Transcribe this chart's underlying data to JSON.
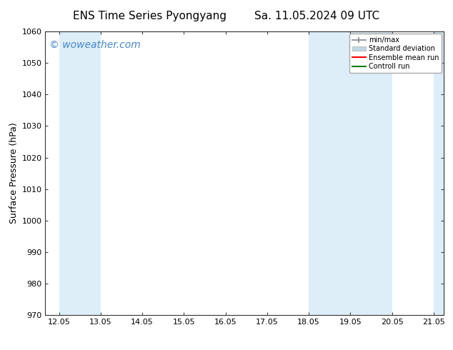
{
  "title_left": "ENS Time Series Pyongyang",
  "title_right": "Sa. 11.05.2024 09 UTC",
  "ylabel": "Surface Pressure (hPa)",
  "xlabel": "",
  "ylim": [
    970,
    1060
  ],
  "yticks": [
    970,
    980,
    990,
    1000,
    1010,
    1020,
    1030,
    1040,
    1050,
    1060
  ],
  "xtick_values": [
    12.05,
    13.05,
    14.05,
    15.05,
    16.05,
    17.05,
    18.05,
    19.05,
    20.05,
    21.05
  ],
  "xtick_labels": [
    "12.05",
    "13.05",
    "14.05",
    "15.05",
    "16.05",
    "17.05",
    "18.05",
    "19.05",
    "20.05",
    "21.05"
  ],
  "xlim": [
    11.72,
    21.3
  ],
  "shaded_bands": [
    {
      "x_start": 12.05,
      "x_end": 13.05,
      "color": "#ddeef8"
    },
    {
      "x_start": 18.05,
      "x_end": 19.05,
      "color": "#ddeef8"
    },
    {
      "x_start": 19.05,
      "x_end": 20.05,
      "color": "#ddeef8"
    },
    {
      "x_start": 21.05,
      "x_end": 21.3,
      "color": "#ddeef8"
    }
  ],
  "watermark": "© woweather.com",
  "watermark_color": "#4488cc",
  "watermark_fontsize": 10,
  "legend_labels": [
    "min/max",
    "Standard deviation",
    "Ensemble mean run",
    "Controll run"
  ],
  "legend_colors": [
    "#aaaaaa",
    "#c0d8e8",
    "#ff0000",
    "#008000"
  ],
  "bg_color": "#ffffff",
  "plot_bg_color": "#ffffff",
  "tick_fontsize": 8,
  "title_fontsize": 11,
  "ylabel_fontsize": 9
}
